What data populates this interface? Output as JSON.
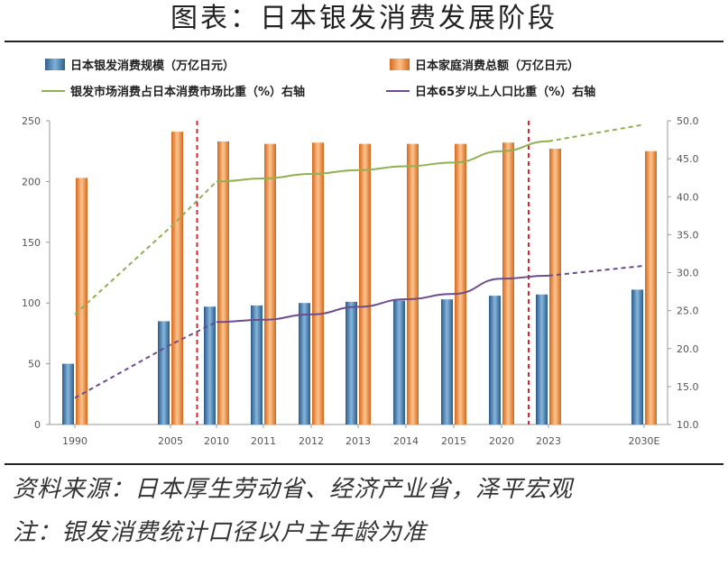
{
  "header": {
    "title": "图表：日本银发消费发展阶段"
  },
  "legend": {
    "items": [
      {
        "label": "日本银发消费规模（万亿日元）",
        "color": "#3e78b2"
      },
      {
        "label": "日本家庭消费总额（万亿日元）",
        "color": "#ed8a3b"
      },
      {
        "label": "银发市场消费占日本消费市场比重（%）右轴",
        "color": "#8fb14e"
      },
      {
        "label": "日本65岁以上人口比重（%）右轴",
        "color": "#6b4c8f"
      }
    ]
  },
  "chart_data": {
    "type": "bar",
    "categories": [
      "1990",
      "2005",
      "2010",
      "2011",
      "2012",
      "2013",
      "2014",
      "2015",
      "2020",
      "2023",
      "2030E"
    ],
    "series": [
      {
        "name": "日本银发消费规模（万亿日元）",
        "type": "bar",
        "axis": "left",
        "color": "#3e78b2",
        "values": [
          50,
          85,
          97,
          98,
          100,
          101,
          102,
          103,
          106,
          107,
          111
        ]
      },
      {
        "name": "日本家庭消费总额（万亿日元）",
        "type": "bar",
        "axis": "left",
        "color": "#ed8a3b",
        "values": [
          203,
          241,
          233,
          231,
          232,
          231,
          231,
          231,
          232,
          227,
          225
        ]
      },
      {
        "name": "银发市场消费占日本消费市场比重（%）右轴",
        "type": "line",
        "axis": "right",
        "color": "#8fb14e",
        "values": [
          24.5,
          36.0,
          42.0,
          42.4,
          43.0,
          43.5,
          44.0,
          44.5,
          46.0,
          47.3,
          49.5
        ],
        "dashed_segments": [
          "1990-2010",
          "2023-2030E"
        ]
      },
      {
        "name": "日本65岁以上人口比重（%）右轴",
        "type": "line",
        "axis": "right",
        "color": "#6b4c8f",
        "values": [
          13.5,
          20.5,
          23.5,
          23.8,
          24.5,
          25.5,
          26.5,
          27.2,
          29.2,
          29.6,
          30.9
        ],
        "dashed_segments": [
          "1990-2010",
          "2023-2030E"
        ]
      }
    ],
    "y_left": {
      "ylim": [
        0,
        250
      ],
      "ticks": [
        "0",
        "50",
        "100",
        "150",
        "200",
        "250"
      ]
    },
    "y_right": {
      "ylim": [
        10,
        50
      ],
      "ticks": [
        "10.0",
        "15.0",
        "20.0",
        "25.0",
        "30.0",
        "35.0",
        "40.0",
        "45.0",
        "50.0"
      ]
    },
    "stage_dividers": [
      "2005-2010",
      "2020-2023"
    ],
    "divider_color": "#d9262b",
    "grid": false,
    "legend_position": "top"
  },
  "footer": {
    "source": "资料来源：日本厚生劳动省、经济产业省，泽平宏观",
    "note": "注：银发消费统计口径以户主年龄为准"
  }
}
